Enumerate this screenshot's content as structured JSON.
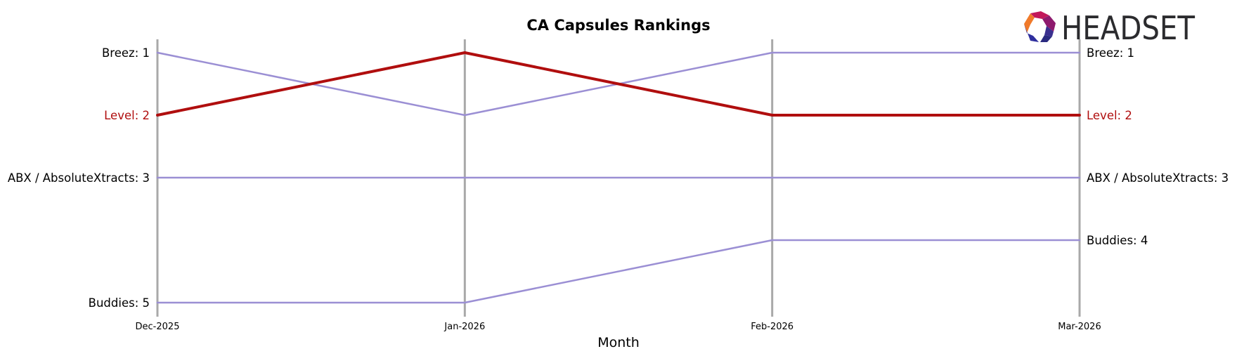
{
  "chart_data": {
    "type": "line",
    "title": "CA Capsules Rankings",
    "xlabel": "Month",
    "ylabel": "",
    "x": [
      "Dec-2025",
      "Jan-2026",
      "Feb-2026",
      "Mar-2026"
    ],
    "ylim": [
      5,
      1
    ],
    "y_inverted": true,
    "grid": "vertical lines at each month",
    "legend": "inline labels at left and right ends of each line",
    "series": [
      {
        "name": "Breez",
        "values": [
          1,
          2,
          1,
          1
        ],
        "color": "#9b8fd4",
        "highlight": false,
        "left_label": "Breez: 1",
        "right_label": "Breez: 1"
      },
      {
        "name": "Level",
        "values": [
          2,
          1,
          2,
          2
        ],
        "color": "#b00e0e",
        "highlight": true,
        "left_label": "Level: 2",
        "right_label": "Level: 2"
      },
      {
        "name": "ABX / AbsoluteXtracts",
        "values": [
          3,
          3,
          3,
          3
        ],
        "color": "#9b8fd4",
        "highlight": false,
        "left_label": "ABX / AbsoluteXtracts: 3",
        "right_label": "ABX / AbsoluteXtracts: 3"
      },
      {
        "name": "Buddies",
        "values": [
          5,
          5,
          4,
          4
        ],
        "color": "#9b8fd4",
        "highlight": false,
        "left_label": "Buddies: 5",
        "right_label": "Buddies: 4"
      }
    ]
  },
  "brand": {
    "name": "HEADSET",
    "icon": "headset-logo-icon"
  },
  "colors": {
    "gridline": "#a9a9a9",
    "highlight": "#b00e0e",
    "base": "#9b8fd4",
    "text": "#000000"
  }
}
